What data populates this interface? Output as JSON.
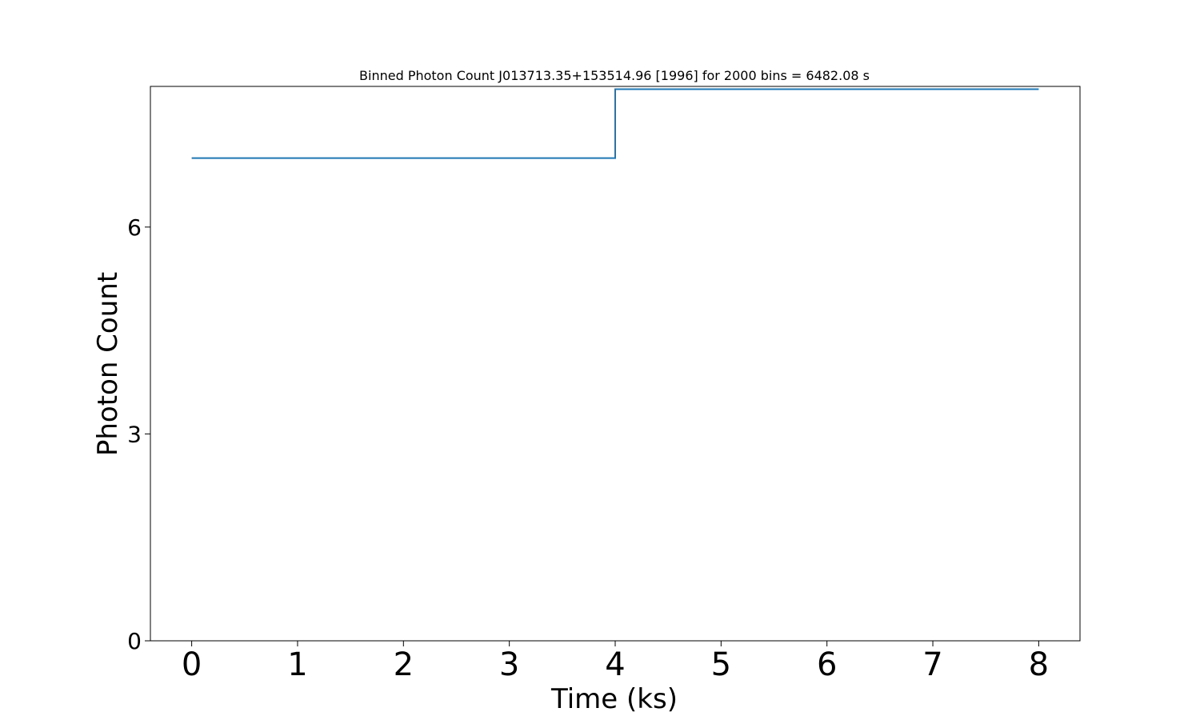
{
  "chart_data": {
    "type": "line",
    "drawstyle": "steps-mid",
    "title": "Binned Photon Count J013713.35+153514.96 [1996] for 2000 bins = 6482.08 s",
    "xlabel": "Time (ks)",
    "ylabel": "Photon Count",
    "x_ticks": [
      0,
      1,
      2,
      3,
      4,
      5,
      6,
      7,
      8
    ],
    "y_ticks": [
      0,
      3,
      6
    ],
    "xlim": [
      -0.39,
      8.39
    ],
    "ylim": [
      0,
      8.04
    ],
    "grid": false,
    "series": [
      {
        "color": "#1f77b4",
        "x": [
          0,
          8
        ],
        "y": [
          7,
          8
        ]
      }
    ]
  }
}
